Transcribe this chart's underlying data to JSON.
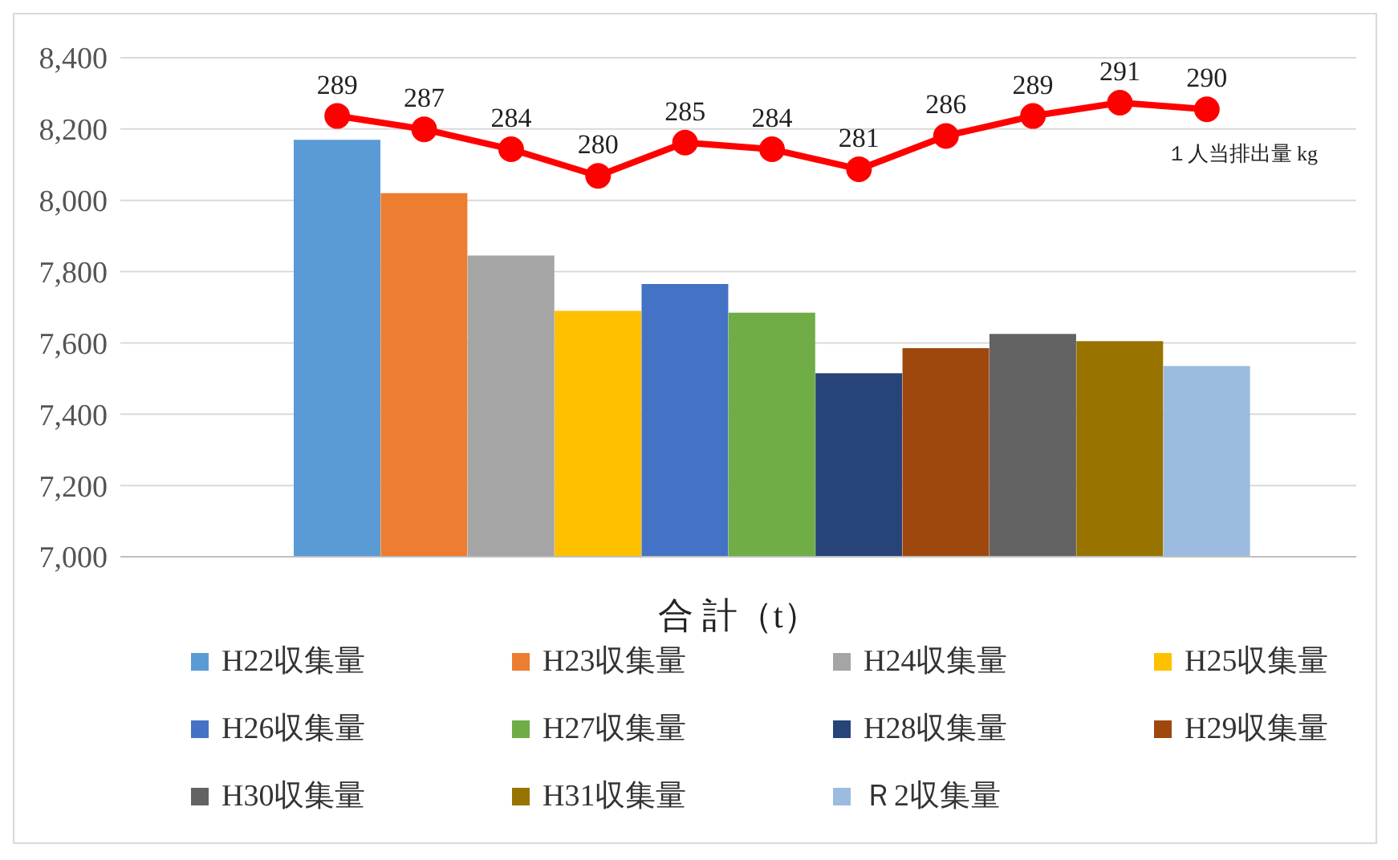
{
  "chart_data": {
    "type": "bar",
    "stacked": true,
    "xlabel": "合 計（t）",
    "categories": [
      null,
      null,
      null,
      null,
      null,
      null,
      null,
      null,
      null,
      null,
      null
    ],
    "ylim": [
      7000,
      8400
    ],
    "yticks": [
      {
        "value": 7000,
        "label": "7,000"
      },
      {
        "value": 7200,
        "label": "7,200"
      },
      {
        "value": 7400,
        "label": "7,400"
      },
      {
        "value": 7600,
        "label": "7,600"
      },
      {
        "value": 7800,
        "label": "7,800"
      },
      {
        "value": 8000,
        "label": "8,000"
      },
      {
        "value": 8200,
        "label": "8,200"
      },
      {
        "value": 8400,
        "label": "8,400"
      }
    ],
    "y2lim": [
      222.75,
      297.75
    ],
    "grid": "y",
    "legend": "bottom",
    "marker": "circle",
    "series": [
      {
        "name": "H22収集量",
        "color": "#5b9bd5",
        "values": [
          8170,
          null,
          null,
          null,
          null,
          null,
          null,
          null,
          null,
          null,
          null
        ]
      },
      {
        "name": "H23収集量",
        "color": "#ed7d31",
        "values": [
          null,
          8020,
          null,
          null,
          null,
          null,
          null,
          null,
          null,
          null,
          null
        ]
      },
      {
        "name": "H24収集量",
        "color": "#a5a5a5",
        "values": [
          null,
          null,
          7845,
          null,
          null,
          null,
          null,
          null,
          null,
          null,
          null
        ]
      },
      {
        "name": "H25収集量",
        "color": "#ffc000",
        "values": [
          null,
          null,
          null,
          7690,
          null,
          null,
          null,
          null,
          null,
          null,
          null
        ]
      },
      {
        "name": "H26収集量",
        "color": "#4472c4",
        "values": [
          null,
          null,
          null,
          null,
          7765,
          null,
          null,
          null,
          null,
          null,
          null
        ]
      },
      {
        "name": "H27収集量",
        "color": "#70ad47",
        "values": [
          null,
          null,
          null,
          null,
          null,
          7685,
          null,
          null,
          null,
          null,
          null
        ]
      },
      {
        "name": "H28収集量",
        "color": "#264478",
        "values": [
          null,
          null,
          null,
          null,
          null,
          null,
          7515,
          null,
          null,
          null,
          null
        ]
      },
      {
        "name": "H29収集量",
        "color": "#9e480e",
        "values": [
          null,
          null,
          null,
          null,
          null,
          null,
          null,
          7585,
          null,
          null,
          null
        ]
      },
      {
        "name": "H30収集量",
        "color": "#636363",
        "values": [
          null,
          null,
          null,
          null,
          null,
          null,
          null,
          null,
          7625,
          null,
          null
        ]
      },
      {
        "name": "H31収集量",
        "color": "#997300",
        "values": [
          null,
          null,
          null,
          null,
          null,
          null,
          null,
          null,
          null,
          7605,
          null
        ]
      },
      {
        "name": "Ｒ2収集量",
        "color": "#9bbbe0",
        "values": [
          null,
          null,
          null,
          null,
          null,
          null,
          null,
          null,
          null,
          null,
          7535
        ]
      },
      {
        "name": "１人当排出量 kg",
        "type": "line",
        "axis": "y2",
        "color": "#ff0000",
        "values": [
          289,
          287,
          284,
          280,
          285,
          284,
          281,
          286,
          289,
          291,
          290
        ],
        "value_labels": [
          "289",
          "287",
          "284",
          "280",
          "285",
          "284",
          "281",
          "286",
          "289",
          "291",
          "290"
        ]
      }
    ]
  }
}
